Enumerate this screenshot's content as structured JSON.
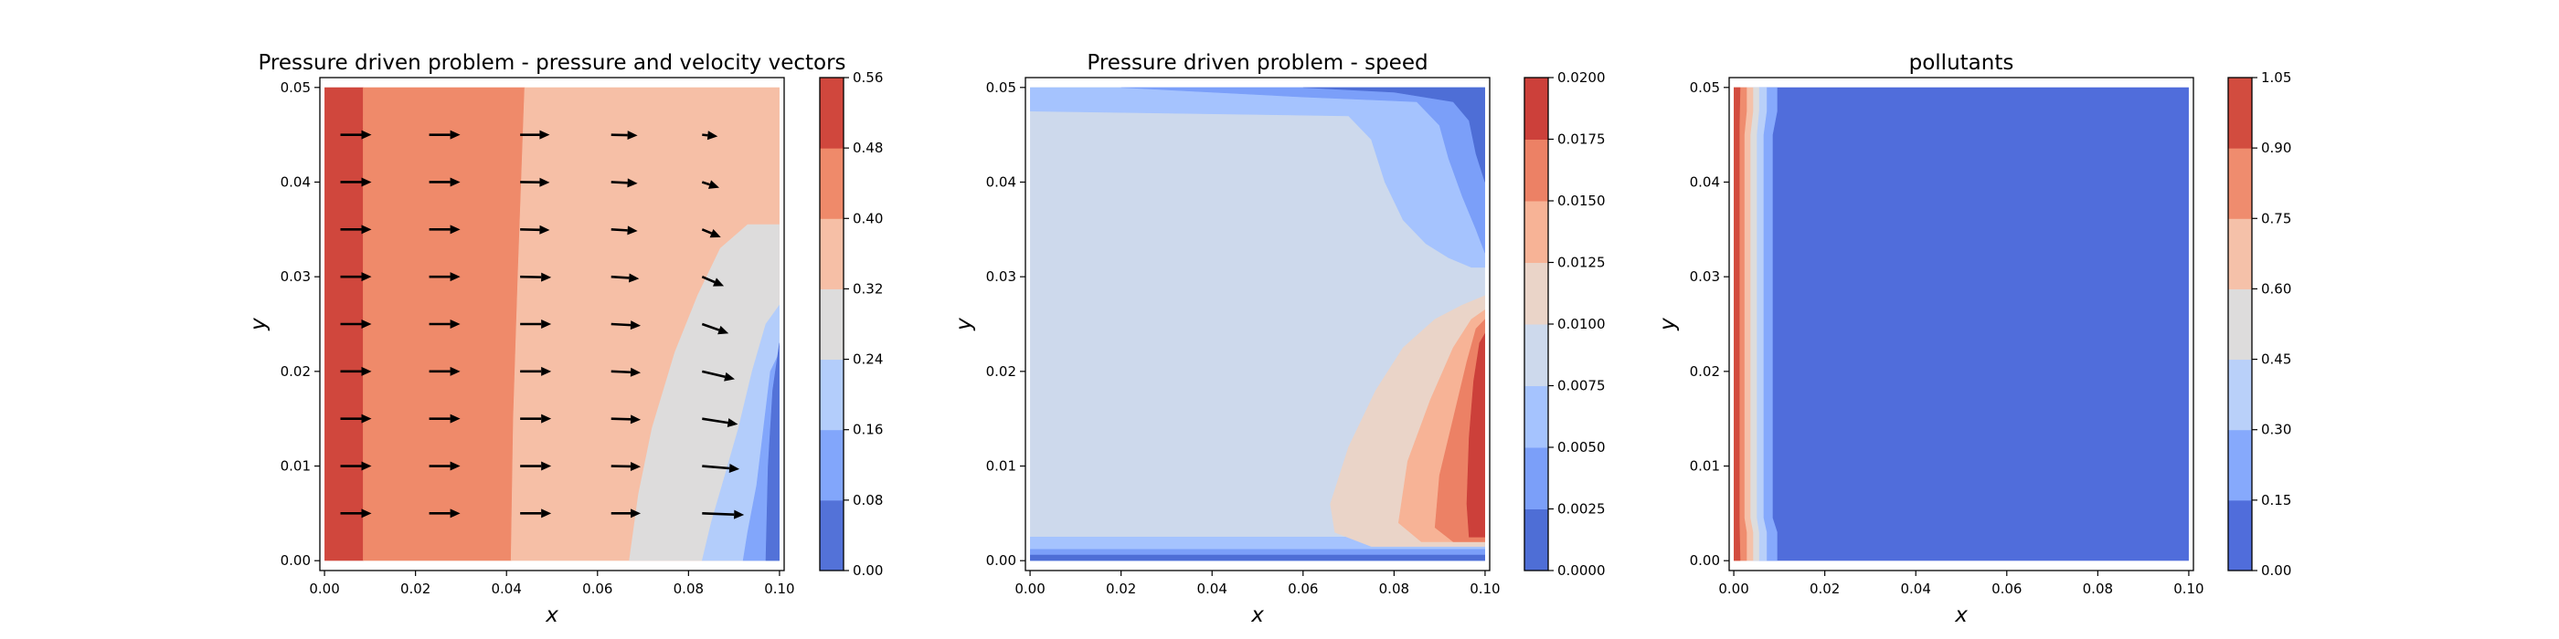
{
  "chart_data": [
    {
      "type": "contour",
      "title": "Pressure driven problem - pressure and velocity vectors",
      "xlabel": "x",
      "ylabel": "y",
      "xlim": [
        0.0,
        0.1
      ],
      "ylim": [
        0.0,
        0.05
      ],
      "x_ticks": [
        "0.00",
        "0.02",
        "0.04",
        "0.06",
        "0.08",
        "0.10"
      ],
      "y_ticks": [
        "0.00",
        "0.01",
        "0.02",
        "0.03",
        "0.04",
        "0.05"
      ],
      "colorbar_ticks": [
        "0.00",
        "0.08",
        "0.16",
        "0.24",
        "0.32",
        "0.40",
        "0.48",
        "0.56"
      ],
      "colorbar_range": [
        0.0,
        0.56
      ],
      "levels": [
        0.0,
        0.08,
        0.16,
        0.24,
        0.32,
        0.4,
        0.48,
        0.56
      ],
      "colormap": "coolwarm",
      "level_colors": [
        "#5372d8",
        "#82a6fb",
        "#b3cdfb",
        "#dddcdc",
        "#f6bfa6",
        "#ef8a6a",
        "#d0473d"
      ],
      "regions": [
        {
          "level_index": 6,
          "polygon": [
            [
              0,
              0
            ],
            [
              0.0085,
              0
            ],
            [
              0.0085,
              0.05
            ],
            [
              0,
              0.05
            ]
          ]
        },
        {
          "level_index": 5,
          "polygon": [
            [
              0.0085,
              0
            ],
            [
              0.041,
              0
            ],
            [
              0.0415,
              0.015
            ],
            [
              0.0425,
              0.03
            ],
            [
              0.044,
              0.05
            ],
            [
              0.0085,
              0.05
            ]
          ]
        },
        {
          "level_index": 4,
          "polygon": [
            [
              0.041,
              0
            ],
            [
              0.1,
              0
            ],
            [
              0.1,
              0.05
            ],
            [
              0.044,
              0.05
            ],
            [
              0.0425,
              0.03
            ],
            [
              0.0415,
              0.015
            ]
          ]
        },
        {
          "level_index": 3,
          "polygon": [
            [
              0.067,
              0
            ],
            [
              0.1,
              0
            ],
            [
              0.1,
              0.0355
            ],
            [
              0.093,
              0.0355
            ],
            [
              0.087,
              0.033
            ],
            [
              0.082,
              0.028
            ],
            [
              0.077,
              0.022
            ],
            [
              0.072,
              0.014
            ],
            [
              0.069,
              0.007
            ]
          ]
        },
        {
          "level_index": 2,
          "polygon": [
            [
              0.083,
              0
            ],
            [
              0.1,
              0
            ],
            [
              0.1,
              0.027
            ],
            [
              0.097,
              0.025
            ],
            [
              0.094,
              0.02
            ],
            [
              0.091,
              0.014
            ],
            [
              0.088,
              0.009
            ],
            [
              0.085,
              0.004
            ]
          ]
        },
        {
          "level_index": 1,
          "polygon": [
            [
              0.092,
              0
            ],
            [
              0.1,
              0
            ],
            [
              0.1,
              0.022
            ],
            [
              0.098,
              0.02
            ],
            [
              0.0965,
              0.014
            ],
            [
              0.095,
              0.008
            ],
            [
              0.093,
              0.003
            ]
          ]
        },
        {
          "level_index": 0,
          "polygon": [
            [
              0.097,
              0
            ],
            [
              0.1,
              0
            ],
            [
              0.1,
              0.023
            ],
            [
              0.0985,
              0.018
            ],
            [
              0.0975,
              0.01
            ]
          ]
        }
      ],
      "vectors": {
        "x": [
          0.0035,
          0.023,
          0.043,
          0.063,
          0.083
        ],
        "y": [
          0.005,
          0.01,
          0.015,
          0.02,
          0.025,
          0.03,
          0.035,
          0.04,
          0.045
        ],
        "u": [
          [
            1.0,
            1.0,
            1.0,
            0.95,
            1.35
          ],
          [
            1.0,
            1.0,
            1.0,
            0.95,
            1.2
          ],
          [
            1.0,
            1.0,
            1.0,
            0.95,
            1.15
          ],
          [
            1.0,
            1.0,
            1.0,
            0.95,
            1.05
          ],
          [
            1.0,
            1.0,
            1.0,
            0.95,
            0.85
          ],
          [
            1.0,
            1.0,
            1.0,
            0.9,
            0.7
          ],
          [
            1.0,
            1.0,
            0.95,
            0.85,
            0.6
          ],
          [
            1.0,
            1.0,
            0.95,
            0.85,
            0.55
          ],
          [
            1.0,
            1.0,
            0.95,
            0.85,
            0.5
          ]
        ],
        "v": [
          [
            0.0,
            0.0,
            0.0,
            0.0,
            -0.05
          ],
          [
            0.0,
            0.0,
            0.0,
            -0.02,
            -0.1
          ],
          [
            0.0,
            0.0,
            0.0,
            -0.03,
            -0.18
          ],
          [
            0.0,
            0.0,
            0.0,
            -0.04,
            -0.25
          ],
          [
            0.0,
            0.0,
            0.0,
            -0.05,
            -0.3
          ],
          [
            0.0,
            0.0,
            -0.02,
            -0.06,
            -0.3
          ],
          [
            0.0,
            0.0,
            -0.02,
            -0.05,
            -0.25
          ],
          [
            0.0,
            0.0,
            -0.01,
            -0.04,
            -0.18
          ],
          [
            0.0,
            0.0,
            0.0,
            -0.02,
            -0.05
          ]
        ]
      }
    },
    {
      "type": "contour",
      "title": "Pressure driven problem - speed",
      "xlabel": "x",
      "ylabel": "y",
      "xlim": [
        0.0,
        0.1
      ],
      "ylim": [
        0.0,
        0.05
      ],
      "x_ticks": [
        "0.00",
        "0.02",
        "0.04",
        "0.06",
        "0.08",
        "0.10"
      ],
      "y_ticks": [
        "0.00",
        "0.01",
        "0.02",
        "0.03",
        "0.04",
        "0.05"
      ],
      "colorbar_ticks": [
        "0.0000",
        "0.0025",
        "0.0050",
        "0.0075",
        "0.0100",
        "0.0125",
        "0.0150",
        "0.0175",
        "0.0200"
      ],
      "colorbar_range": [
        0.0,
        0.02
      ],
      "levels": [
        0.0,
        0.0025,
        0.005,
        0.0075,
        0.01,
        0.0125,
        0.015,
        0.0175,
        0.02
      ],
      "colormap": "coolwarm",
      "level_colors": [
        "#4e6ed6",
        "#7b9ff9",
        "#a5c3fe",
        "#cdd9ec",
        "#ead4c8",
        "#f7b396",
        "#ec8165",
        "#cc403a"
      ],
      "regions": [
        {
          "level_index": 3,
          "polygon": [
            [
              0,
              0
            ],
            [
              0.1,
              0
            ],
            [
              0.1,
              0.05
            ],
            [
              0,
              0.05
            ]
          ]
        },
        {
          "level_index": 2,
          "polygon": [
            [
              0,
              0.05
            ],
            [
              0.1,
              0.05
            ],
            [
              0.1,
              0.031
            ],
            [
              0.097,
              0.031
            ],
            [
              0.092,
              0.032
            ],
            [
              0.087,
              0.0335
            ],
            [
              0.082,
              0.036
            ],
            [
              0.078,
              0.04
            ],
            [
              0.075,
              0.0445
            ],
            [
              0.07,
              0.047
            ],
            [
              0.0,
              0.0475
            ]
          ]
        },
        {
          "level_index": 1,
          "polygon": [
            [
              0.02,
              0.05
            ],
            [
              0.1,
              0.05
            ],
            [
              0.1,
              0.0325
            ],
            [
              0.098,
              0.035
            ],
            [
              0.095,
              0.0385
            ],
            [
              0.092,
              0.0425
            ],
            [
              0.09,
              0.046
            ],
            [
              0.085,
              0.0485
            ],
            [
              0.06,
              0.049
            ]
          ]
        },
        {
          "level_index": 0,
          "polygon": [
            [
              0.06,
              0.05
            ],
            [
              0.1,
              0.05
            ],
            [
              0.1,
              0.04
            ],
            [
              0.098,
              0.043
            ],
            [
              0.0965,
              0.0465
            ],
            [
              0.093,
              0.0485
            ],
            [
              0.08,
              0.0495
            ]
          ]
        },
        {
          "level_index": 2,
          "polygon": [
            [
              0,
              0
            ],
            [
              0.1,
              0
            ],
            [
              0.1,
              0.0025
            ],
            [
              0.0,
              0.0025
            ]
          ]
        },
        {
          "level_index": 1,
          "polygon": [
            [
              0,
              0
            ],
            [
              0.1,
              0
            ],
            [
              0.1,
              0.0012
            ],
            [
              0.0,
              0.0012
            ]
          ]
        },
        {
          "level_index": 0,
          "polygon": [
            [
              0,
              0
            ],
            [
              0.1,
              0
            ],
            [
              0.1,
              0.0006
            ],
            [
              0.0,
              0.0006
            ]
          ]
        },
        {
          "level_index": 4,
          "polygon": [
            [
              0.1,
              0.028
            ],
            [
              0.095,
              0.027
            ],
            [
              0.089,
              0.0255
            ],
            [
              0.082,
              0.0225
            ],
            [
              0.076,
              0.018
            ],
            [
              0.07,
              0.012
            ],
            [
              0.066,
              0.006
            ],
            [
              0.067,
              0.003
            ],
            [
              0.075,
              0.0015
            ],
            [
              0.1,
              0.0015
            ]
          ]
        },
        {
          "level_index": 5,
          "polygon": [
            [
              0.1,
              0.0265
            ],
            [
              0.097,
              0.0255
            ],
            [
              0.093,
              0.0225
            ],
            [
              0.088,
              0.017
            ],
            [
              0.083,
              0.0105
            ],
            [
              0.081,
              0.004
            ],
            [
              0.086,
              0.002
            ],
            [
              0.1,
              0.002
            ]
          ]
        },
        {
          "level_index": 6,
          "polygon": [
            [
              0.1,
              0.0255
            ],
            [
              0.098,
              0.0245
            ],
            [
              0.096,
              0.021
            ],
            [
              0.093,
              0.015
            ],
            [
              0.09,
              0.009
            ],
            [
              0.089,
              0.0035
            ],
            [
              0.093,
              0.002
            ],
            [
              0.1,
              0.002
            ]
          ]
        },
        {
          "level_index": 7,
          "polygon": [
            [
              0.1,
              0.024
            ],
            [
              0.0988,
              0.023
            ],
            [
              0.0975,
              0.019
            ],
            [
              0.0965,
              0.013
            ],
            [
              0.096,
              0.006
            ],
            [
              0.0965,
              0.0025
            ],
            [
              0.1,
              0.0025
            ]
          ]
        }
      ]
    },
    {
      "type": "contour",
      "title": "pollutants",
      "xlabel": "x",
      "ylabel": "y",
      "xlim": [
        0.0,
        0.1
      ],
      "ylim": [
        0.0,
        0.05
      ],
      "x_ticks": [
        "0.00",
        "0.02",
        "0.04",
        "0.06",
        "0.08",
        "0.10"
      ],
      "y_ticks": [
        "0.00",
        "0.01",
        "0.02",
        "0.03",
        "0.04",
        "0.05"
      ],
      "colorbar_ticks": [
        "0.00",
        "0.15",
        "0.30",
        "0.45",
        "0.60",
        "0.75",
        "0.90",
        "1.05"
      ],
      "colorbar_range": [
        0.0,
        1.05
      ],
      "levels": [
        0.0,
        0.15,
        0.3,
        0.45,
        0.6,
        0.75,
        0.9,
        1.05
      ],
      "colormap": "coolwarm",
      "level_colors": [
        "#506ddb",
        "#86a9fc",
        "#b9d0f9",
        "#dddcdc",
        "#f5c1a9",
        "#ef8c6e",
        "#d24c3f"
      ],
      "regions": [
        {
          "level_index": 0,
          "polygon": [
            [
              0,
              0
            ],
            [
              0.1,
              0
            ],
            [
              0.1,
              0.05
            ],
            [
              0,
              0.05
            ]
          ]
        },
        {
          "level_index": 1,
          "polygon": [
            [
              0,
              0
            ],
            [
              0.0095,
              0
            ],
            [
              0.0095,
              0.003
            ],
            [
              0.0085,
              0.0045
            ],
            [
              0.0085,
              0.045
            ],
            [
              0.0095,
              0.0475
            ],
            [
              0.0095,
              0.05
            ],
            [
              0,
              0.05
            ]
          ]
        },
        {
          "level_index": 2,
          "polygon": [
            [
              0,
              0
            ],
            [
              0.0072,
              0
            ],
            [
              0.0072,
              0.003
            ],
            [
              0.0065,
              0.0045
            ],
            [
              0.0065,
              0.045
            ],
            [
              0.0072,
              0.0475
            ],
            [
              0.0072,
              0.05
            ],
            [
              0,
              0.05
            ]
          ]
        },
        {
          "level_index": 3,
          "polygon": [
            [
              0,
              0
            ],
            [
              0.0055,
              0
            ],
            [
              0.0055,
              0.003
            ],
            [
              0.005,
              0.0045
            ],
            [
              0.005,
              0.045
            ],
            [
              0.0055,
              0.0475
            ],
            [
              0.0055,
              0.05
            ],
            [
              0,
              0.05
            ]
          ]
        },
        {
          "level_index": 4,
          "polygon": [
            [
              0,
              0
            ],
            [
              0.0042,
              0
            ],
            [
              0.0042,
              0.003
            ],
            [
              0.0036,
              0.0045
            ],
            [
              0.0036,
              0.045
            ],
            [
              0.0042,
              0.0475
            ],
            [
              0.0042,
              0.05
            ],
            [
              0,
              0.05
            ]
          ]
        },
        {
          "level_index": 5,
          "polygon": [
            [
              0,
              0
            ],
            [
              0.0028,
              0
            ],
            [
              0.0028,
              0.003
            ],
            [
              0.0023,
              0.0045
            ],
            [
              0.0023,
              0.045
            ],
            [
              0.0028,
              0.0475
            ],
            [
              0.0028,
              0.05
            ],
            [
              0,
              0.05
            ]
          ]
        },
        {
          "level_index": 6,
          "polygon": [
            [
              0,
              0
            ],
            [
              0.0014,
              0
            ],
            [
              0.0012,
              0.004
            ],
            [
              0.0012,
              0.046
            ],
            [
              0.0014,
              0.05
            ],
            [
              0,
              0.05
            ]
          ]
        }
      ]
    }
  ]
}
